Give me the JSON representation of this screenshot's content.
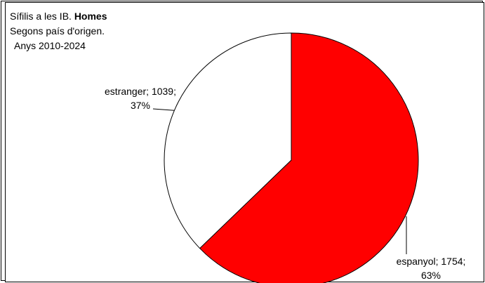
{
  "chart_data": {
    "type": "pie",
    "title_line1": "Sífilis a les IB.",
    "title_bold": "Homes",
    "title_line2": "Segons país d'origen.",
    "title_line3": "Anys 2010-2024",
    "slices": [
      {
        "label": "espanyol",
        "value": 1754,
        "percent": 63,
        "color": "#ff0000",
        "label_line1": "espanyol; 1754;",
        "label_line2": "63%"
      },
      {
        "label": "estranger",
        "value": 1039,
        "percent": 37,
        "color": "#ffffff",
        "label_line1": "estranger; 1039;",
        "label_line2": "37%"
      }
    ]
  }
}
